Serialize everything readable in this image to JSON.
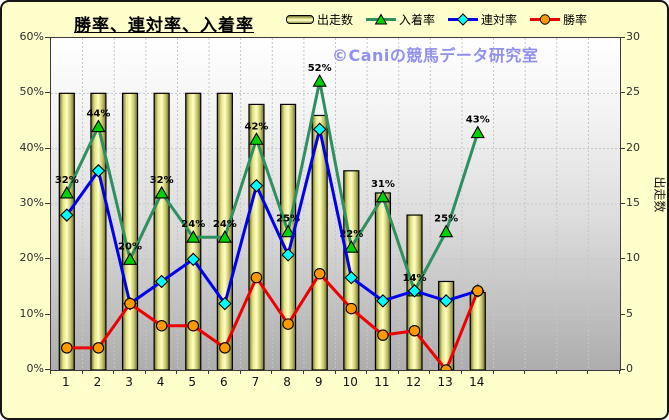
{
  "watermark": {
    "text": "©Caniの競馬データ研究室",
    "color": "#9090ee"
  },
  "chart_data": {
    "type": "bar+line",
    "title": "勝率、連対率、入着率",
    "categories": [
      "1",
      "2",
      "3",
      "4",
      "5",
      "6",
      "7",
      "8",
      "9",
      "10",
      "11",
      "12",
      "13",
      "14"
    ],
    "series": [
      {
        "key": "starts",
        "name": "出走数",
        "chart": "bar",
        "axis": "right",
        "values": [
          25,
          25,
          25,
          25,
          25,
          25,
          24,
          24,
          23,
          18,
          16,
          14,
          8,
          7
        ],
        "bar_border": "#000000"
      },
      {
        "key": "place-rate",
        "name": "入着率",
        "chart": "line",
        "axis": "left",
        "marker": "triangle",
        "line_color": "#2e8f60",
        "marker_fill": "#00d400",
        "values": [
          32,
          44,
          20,
          32,
          24,
          24,
          41.7,
          25,
          52.2,
          22.2,
          31.3,
          14.3,
          25,
          42.9
        ],
        "point_labels": [
          "32%",
          "44%",
          "20%",
          "32%",
          "24%",
          "24%",
          "42%",
          "25%",
          "52%",
          "22%",
          "31%",
          "14%",
          "25%",
          "43%"
        ]
      },
      {
        "key": "quinella-rate",
        "name": "連対率",
        "chart": "line",
        "axis": "left",
        "marker": "diamond",
        "line_color": "#0000ee",
        "marker_fill": "#00ffff",
        "values": [
          28,
          36,
          12,
          16,
          20,
          12,
          33.3,
          20.8,
          43.5,
          16.7,
          12.5,
          14.3,
          12.5,
          14.3
        ]
      },
      {
        "key": "win-rate",
        "name": "勝率",
        "chart": "line",
        "axis": "left",
        "marker": "circle",
        "line_color": "#ee0000",
        "marker_fill": "#ff9900",
        "values": [
          4,
          4,
          12,
          8,
          8,
          4,
          16.7,
          8.3,
          17.4,
          11.1,
          6.3,
          7.1,
          0,
          14.3
        ]
      }
    ],
    "left_axis": {
      "min": 0,
      "max": 60,
      "tick_labels": [
        "0%",
        "10%",
        "20%",
        "30%",
        "40%",
        "50%",
        "60%"
      ]
    },
    "right_axis": {
      "min": 0,
      "max": 30,
      "tick_labels": [
        "0",
        "5",
        "10",
        "15",
        "20",
        "25",
        "30"
      ],
      "title": "出走数"
    },
    "x_axis": {
      "labels": [
        "1",
        "2",
        "3",
        "4",
        "5",
        "6",
        "7",
        "8",
        "9",
        "10",
        "11",
        "12",
        "13",
        "14"
      ],
      "total_slots": 18
    },
    "layout": {
      "grid": "dashed",
      "legend_position": "top",
      "plot_bg": "gradient-white-to-gray"
    }
  }
}
